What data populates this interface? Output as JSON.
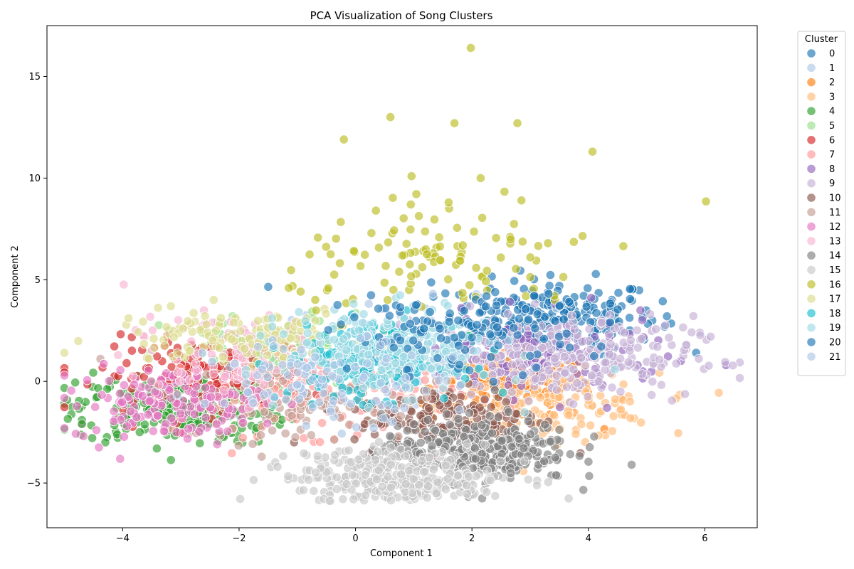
{
  "chart_data": {
    "type": "scatter",
    "title": "PCA Visualization of Song Clusters",
    "xlabel": "Component 1",
    "ylabel": "Component 2",
    "xlim": [
      -5.3,
      6.9
    ],
    "ylim": [
      -7.2,
      17.5
    ],
    "xticks": [
      -4,
      -2,
      0,
      2,
      4,
      6
    ],
    "yticks": [
      -5,
      0,
      5,
      10,
      15
    ],
    "grid": false,
    "legend": {
      "title": "Cluster",
      "placement": "outside-top-right"
    },
    "series": [
      {
        "name": "0",
        "color": "#1f77b4",
        "center": [
          3.4,
          3.2
        ],
        "spread": [
          0.9,
          0.9
        ],
        "n": 220
      },
      {
        "name": "1",
        "color": "#aec7e8",
        "center": [
          1.0,
          1.5
        ],
        "spread": [
          1.2,
          1.2
        ],
        "n": 90
      },
      {
        "name": "2",
        "color": "#ff7f0e",
        "center": [
          2.7,
          -0.3
        ],
        "spread": [
          0.7,
          0.8
        ],
        "n": 140
      },
      {
        "name": "3",
        "color": "#ffbb78",
        "center": [
          3.4,
          -1.2
        ],
        "spread": [
          0.9,
          0.8
        ],
        "n": 140
      },
      {
        "name": "4",
        "color": "#2ca02c",
        "center": [
          -3.0,
          -1.3
        ],
        "spread": [
          0.9,
          0.9
        ],
        "n": 260
      },
      {
        "name": "5",
        "color": "#98df8a",
        "center": [
          -1.5,
          1.3
        ],
        "spread": [
          0.9,
          1.0
        ],
        "n": 100
      },
      {
        "name": "6",
        "color": "#d62728",
        "center": [
          -2.6,
          0.3
        ],
        "spread": [
          0.9,
          0.9
        ],
        "n": 130
      },
      {
        "name": "7",
        "color": "#ff9896",
        "center": [
          -0.6,
          -0.6
        ],
        "spread": [
          1.2,
          1.0
        ],
        "n": 150
      },
      {
        "name": "8",
        "color": "#9467bd",
        "center": [
          3.1,
          1.2
        ],
        "spread": [
          1.1,
          1.0
        ],
        "n": 140
      },
      {
        "name": "9",
        "color": "#c5b0d5",
        "center": [
          3.6,
          1.2
        ],
        "spread": [
          1.1,
          1.0
        ],
        "n": 260
      },
      {
        "name": "10",
        "color": "#8c564b",
        "center": [
          1.6,
          -1.8
        ],
        "spread": [
          0.8,
          0.8
        ],
        "n": 160
      },
      {
        "name": "11",
        "color": "#c49c94",
        "center": [
          -1.0,
          -1.0
        ],
        "spread": [
          1.0,
          1.0
        ],
        "n": 100
      },
      {
        "name": "12",
        "color": "#e377c2",
        "center": [
          -3.2,
          -1.1
        ],
        "spread": [
          0.8,
          0.9
        ],
        "n": 160
      },
      {
        "name": "13",
        "color": "#f7b6d2",
        "center": [
          -2.0,
          1.2
        ],
        "spread": [
          1.0,
          1.0
        ],
        "n": 110
      },
      {
        "name": "14",
        "color": "#7f7f7f",
        "center": [
          2.1,
          -3.3
        ],
        "spread": [
          0.8,
          0.8
        ],
        "n": 300
      },
      {
        "name": "15",
        "color": "#c7c7c7",
        "center": [
          0.8,
          -4.7
        ],
        "spread": [
          0.9,
          0.7
        ],
        "n": 300
      },
      {
        "name": "16",
        "color": "#bcbd22",
        "center": [
          1.5,
          5.8
        ],
        "spread": [
          1.3,
          1.3
        ],
        "n": 110
      },
      {
        "name": "17",
        "color": "#dbdb8d",
        "center": [
          -2.0,
          2.2
        ],
        "spread": [
          1.1,
          0.7
        ],
        "n": 140
      },
      {
        "name": "18",
        "color": "#17becf",
        "center": [
          0.3,
          1.0
        ],
        "spread": [
          0.7,
          0.9
        ],
        "n": 180
      },
      {
        "name": "19",
        "color": "#9edae5",
        "center": [
          0.6,
          1.5
        ],
        "spread": [
          0.9,
          1.0
        ],
        "n": 260
      },
      {
        "name": "20",
        "color": "#1f77b4",
        "center": [
          1.8,
          2.4
        ],
        "spread": [
          1.0,
          1.0
        ],
        "n": 120
      },
      {
        "name": "21",
        "color": "#aec7e8",
        "center": [
          -0.5,
          0.0
        ],
        "spread": [
          1.0,
          1.0
        ],
        "n": 100
      }
    ],
    "outliers": [
      {
        "cluster": "16",
        "x": 1.98,
        "y": 16.4
      },
      {
        "cluster": "16",
        "x": 0.6,
        "y": 13.0
      },
      {
        "cluster": "16",
        "x": 1.7,
        "y": 12.7
      },
      {
        "cluster": "16",
        "x": 2.78,
        "y": 12.7
      },
      {
        "cluster": "16",
        "x": -0.2,
        "y": 11.9
      },
      {
        "cluster": "16",
        "x": 4.07,
        "y": 11.3
      },
      {
        "cluster": "16",
        "x": 2.15,
        "y": 10.0
      },
      {
        "cluster": "16",
        "x": 6.02,
        "y": 8.85
      },
      {
        "cluster": "16",
        "x": 2.85,
        "y": 8.9
      },
      {
        "cluster": "16",
        "x": 1.6,
        "y": 8.8
      },
      {
        "cluster": "16",
        "x": 0.95,
        "y": 8.7
      },
      {
        "cluster": "16",
        "x": 0.35,
        "y": 8.4
      },
      {
        "cluster": "16",
        "x": 3.9,
        "y": 7.15
      },
      {
        "cluster": "16",
        "x": 4.6,
        "y": 6.65
      },
      {
        "cluster": "4",
        "x": -4.7,
        "y": -1.9
      },
      {
        "cluster": "4",
        "x": -4.7,
        "y": -2.1
      },
      {
        "cluster": "12",
        "x": -4.45,
        "y": -2.4
      },
      {
        "cluster": "9",
        "x": 6.35,
        "y": 0.95
      },
      {
        "cluster": "9",
        "x": 6.1,
        "y": 2.2
      },
      {
        "cluster": "15",
        "x": -1.75,
        "y": -4.85
      },
      {
        "cluster": "0",
        "x": 5.35,
        "y": 3.2
      },
      {
        "cluster": "0",
        "x": -1.5,
        "y": 4.65
      }
    ]
  }
}
